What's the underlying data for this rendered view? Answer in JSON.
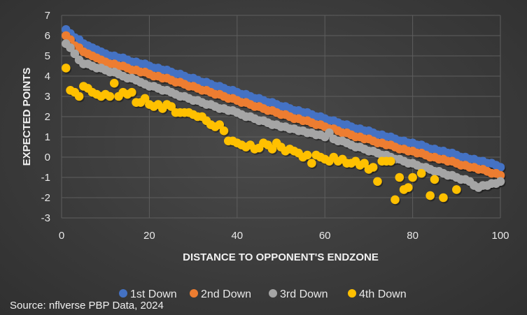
{
  "chart_data": {
    "type": "scatter",
    "title": "",
    "xlabel": "DISTANCE TO OPPONENT'S ENDZONE",
    "ylabel": "EXPECTED POINTS",
    "xlim": [
      0,
      100
    ],
    "ylim": [
      -3,
      7
    ],
    "xticks": [
      0,
      20,
      40,
      60,
      80,
      100
    ],
    "yticks": [
      -3,
      -2,
      -1,
      0,
      1,
      2,
      3,
      4,
      5,
      6,
      7
    ],
    "grid": true,
    "legend_position": "bottom",
    "series": [
      {
        "name": "1st Down",
        "color": "#4472C4",
        "x": [
          1,
          2,
          3,
          4,
          5,
          6,
          7,
          8,
          9,
          10,
          11,
          12,
          13,
          14,
          15,
          16,
          17,
          18,
          19,
          20,
          21,
          22,
          23,
          24,
          25,
          26,
          27,
          28,
          29,
          30,
          31,
          32,
          33,
          34,
          35,
          36,
          37,
          38,
          39,
          40,
          41,
          42,
          43,
          44,
          45,
          46,
          47,
          48,
          49,
          50,
          51,
          52,
          53,
          54,
          55,
          56,
          57,
          58,
          59,
          60,
          61,
          62,
          63,
          64,
          65,
          66,
          67,
          68,
          69,
          70,
          71,
          72,
          73,
          74,
          75,
          76,
          77,
          78,
          79,
          80,
          81,
          82,
          83,
          84,
          85,
          86,
          87,
          88,
          89,
          90,
          91,
          92,
          93,
          94,
          95,
          96,
          97,
          98,
          99,
          100
        ],
        "y": [
          6.3,
          6.1,
          5.9,
          5.8,
          5.6,
          5.5,
          5.4,
          5.3,
          5.2,
          5.1,
          5.0,
          5.0,
          4.9,
          4.9,
          4.8,
          4.7,
          4.7,
          4.6,
          4.6,
          4.5,
          4.4,
          4.4,
          4.3,
          4.3,
          4.2,
          4.1,
          4.1,
          4.0,
          3.9,
          3.9,
          3.8,
          3.7,
          3.7,
          3.6,
          3.5,
          3.5,
          3.4,
          3.3,
          3.3,
          3.2,
          3.1,
          3.1,
          3.0,
          2.9,
          2.9,
          2.8,
          2.7,
          2.7,
          2.6,
          2.5,
          2.5,
          2.4,
          2.3,
          2.3,
          2.2,
          2.2,
          2.1,
          2.0,
          2.0,
          1.9,
          1.8,
          1.8,
          1.7,
          1.6,
          1.6,
          1.5,
          1.4,
          1.4,
          1.3,
          1.3,
          1.2,
          1.1,
          1.1,
          1.0,
          1.0,
          0.9,
          0.8,
          0.8,
          0.7,
          0.7,
          0.6,
          0.6,
          0.5,
          0.4,
          0.4,
          0.3,
          0.3,
          0.2,
          0.2,
          0.1,
          0.0,
          0.0,
          -0.1,
          -0.1,
          -0.2,
          -0.2,
          -0.3,
          -0.3,
          -0.4,
          -0.5
        ]
      },
      {
        "name": "2nd Down",
        "color": "#ED7D31",
        "x": [
          1,
          2,
          3,
          4,
          5,
          6,
          7,
          8,
          9,
          10,
          11,
          12,
          13,
          14,
          15,
          16,
          17,
          18,
          19,
          20,
          21,
          22,
          23,
          24,
          25,
          26,
          27,
          28,
          29,
          30,
          31,
          32,
          33,
          34,
          35,
          36,
          37,
          38,
          39,
          40,
          41,
          42,
          43,
          44,
          45,
          46,
          47,
          48,
          49,
          50,
          51,
          52,
          53,
          54,
          55,
          56,
          57,
          58,
          59,
          60,
          61,
          62,
          63,
          64,
          65,
          66,
          67,
          68,
          69,
          70,
          71,
          72,
          73,
          74,
          75,
          76,
          77,
          78,
          79,
          80,
          81,
          82,
          83,
          84,
          85,
          86,
          87,
          88,
          89,
          90,
          91,
          92,
          93,
          94,
          95,
          96,
          97,
          98,
          99,
          100
        ],
        "y": [
          6.0,
          5.8,
          5.5,
          5.4,
          5.2,
          5.1,
          5.0,
          4.9,
          4.8,
          4.7,
          4.6,
          4.6,
          4.5,
          4.5,
          4.4,
          4.3,
          4.3,
          4.2,
          4.2,
          4.1,
          4.0,
          4.0,
          3.9,
          3.9,
          3.8,
          3.7,
          3.7,
          3.6,
          3.5,
          3.5,
          3.4,
          3.3,
          3.3,
          3.2,
          3.1,
          3.1,
          3.0,
          2.9,
          2.9,
          2.8,
          2.7,
          2.7,
          2.6,
          2.5,
          2.5,
          2.4,
          2.3,
          2.3,
          2.2,
          2.1,
          2.1,
          2.0,
          1.9,
          1.9,
          1.8,
          1.8,
          1.7,
          1.6,
          1.6,
          1.5,
          1.4,
          1.4,
          1.3,
          1.2,
          1.2,
          1.1,
          1.0,
          1.0,
          0.9,
          0.9,
          0.8,
          0.7,
          0.7,
          0.6,
          0.6,
          0.5,
          0.4,
          0.4,
          0.3,
          0.3,
          0.2,
          0.2,
          0.1,
          0.0,
          0.0,
          -0.1,
          -0.1,
          -0.2,
          -0.2,
          -0.3,
          -0.4,
          -0.4,
          -0.5,
          -0.5,
          -0.6,
          -0.6,
          -0.7,
          -0.8,
          -0.8,
          -0.9
        ]
      },
      {
        "name": "3rd Down",
        "color": "#A5A5A5",
        "x": [
          1,
          2,
          3,
          4,
          5,
          6,
          7,
          8,
          9,
          10,
          11,
          12,
          13,
          14,
          15,
          16,
          17,
          18,
          19,
          20,
          21,
          22,
          23,
          24,
          25,
          26,
          27,
          28,
          29,
          30,
          31,
          32,
          33,
          34,
          35,
          36,
          37,
          38,
          39,
          40,
          41,
          42,
          43,
          44,
          45,
          46,
          47,
          48,
          49,
          50,
          51,
          52,
          53,
          54,
          55,
          56,
          57,
          58,
          59,
          60,
          61,
          62,
          63,
          64,
          65,
          66,
          67,
          68,
          69,
          70,
          71,
          72,
          73,
          74,
          75,
          76,
          77,
          78,
          79,
          80,
          81,
          82,
          83,
          84,
          85,
          86,
          87,
          88,
          89,
          90,
          91,
          92,
          93,
          94,
          95,
          96,
          97,
          98,
          99,
          100
        ],
        "y": [
          5.6,
          5.4,
          5.1,
          4.8,
          4.6,
          4.6,
          4.5,
          4.4,
          4.4,
          4.3,
          4.2,
          4.2,
          4.1,
          4.0,
          3.9,
          3.9,
          3.8,
          3.7,
          3.6,
          3.5,
          3.5,
          3.4,
          3.3,
          3.3,
          3.2,
          3.1,
          3.0,
          3.0,
          2.9,
          2.8,
          2.8,
          2.7,
          2.6,
          2.6,
          2.5,
          2.4,
          2.4,
          2.3,
          2.3,
          2.2,
          2.1,
          2.0,
          2.0,
          1.9,
          1.8,
          1.8,
          1.7,
          1.6,
          1.6,
          1.5,
          1.5,
          1.4,
          1.4,
          1.3,
          1.3,
          1.2,
          1.2,
          1.1,
          1.1,
          1.0,
          1.2,
          0.9,
          0.8,
          0.8,
          0.7,
          0.6,
          0.5,
          0.5,
          0.4,
          0.3,
          0.3,
          0.2,
          0.1,
          0.1,
          0.0,
          -0.1,
          -0.1,
          -0.2,
          -0.3,
          -0.3,
          -0.4,
          -0.5,
          -0.5,
          -0.6,
          -0.7,
          -0.7,
          -0.8,
          -0.9,
          -0.9,
          -1.0,
          -1.1,
          -1.1,
          -1.2,
          -1.4,
          -1.5,
          -1.4,
          -1.4,
          -1.3,
          -1.3,
          -1.2
        ]
      },
      {
        "name": "4th Down",
        "color": "#FFC000",
        "x": [
          1,
          2,
          3,
          4,
          5,
          6,
          7,
          8,
          9,
          10,
          11,
          12,
          13,
          14,
          15,
          16,
          17,
          18,
          19,
          20,
          21,
          22,
          23,
          24,
          25,
          26,
          27,
          28,
          29,
          30,
          31,
          32,
          33,
          34,
          35,
          36,
          37,
          38,
          39,
          40,
          41,
          42,
          43,
          44,
          45,
          46,
          47,
          48,
          49,
          50,
          51,
          52,
          53,
          54,
          55,
          56,
          57,
          58,
          59,
          60,
          61,
          62,
          63,
          64,
          65,
          66,
          67,
          68,
          69,
          70,
          71,
          72,
          73,
          74,
          75,
          76,
          77,
          78,
          79,
          80,
          82,
          84,
          85,
          87,
          90
        ],
        "y": [
          4.4,
          3.3,
          3.2,
          3.0,
          3.5,
          3.4,
          3.2,
          3.1,
          3.0,
          3.1,
          3.0,
          3.65,
          3.0,
          3.2,
          3.1,
          3.2,
          2.7,
          2.7,
          2.9,
          2.6,
          2.5,
          2.6,
          2.4,
          2.6,
          2.5,
          2.2,
          2.2,
          2.2,
          2.2,
          2.1,
          2.0,
          2.0,
          1.8,
          1.6,
          1.5,
          1.6,
          1.3,
          0.8,
          0.8,
          0.7,
          0.6,
          0.5,
          0.6,
          0.4,
          0.45,
          0.7,
          0.6,
          0.4,
          0.7,
          0.5,
          0.3,
          0.4,
          0.3,
          0.2,
          0.0,
          0.1,
          -0.3,
          0.1,
          0.0,
          -0.1,
          -0.2,
          0.0,
          -0.2,
          -0.1,
          -0.3,
          -0.3,
          -0.2,
          -0.4,
          -0.3,
          -0.6,
          -0.5,
          -1.2,
          -0.2,
          -0.2,
          -0.2,
          -2.1,
          -1.0,
          -1.6,
          -1.5,
          -1.0,
          -0.8,
          -1.9,
          -1.1,
          -2.0,
          -1.6
        ]
      }
    ]
  },
  "source": "Source: nflverse PBP Data, 2024"
}
